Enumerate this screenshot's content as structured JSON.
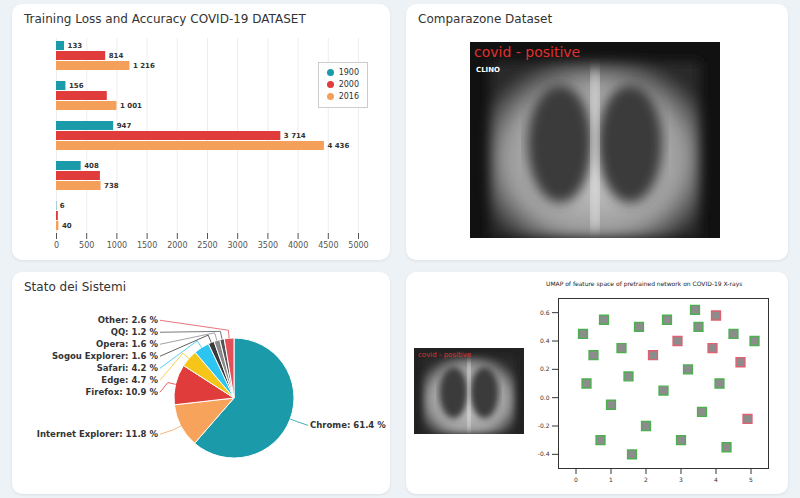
{
  "chart_data": [
    {
      "type": "bar",
      "title": "Training Loss and Accuracy COVID-19 DATASET",
      "orientation": "horizontal",
      "categories": [
        null,
        null,
        null,
        null,
        null
      ],
      "series": [
        {
          "name": "1900",
          "color": "#1b9aaa",
          "values": [
            133,
            156,
            947,
            408,
            6
          ],
          "value_labels": [
            "133",
            "156",
            "947",
            "408",
            "6"
          ]
        },
        {
          "name": "2000",
          "color": "#e03c3c",
          "values": [
            814,
            841,
            3714,
            727,
            31
          ],
          "value_labels": [
            "814",
            null,
            "3 714",
            null,
            null
          ]
        },
        {
          "name": "2016",
          "color": "#f5a05a",
          "values": [
            1216,
            1001,
            4436,
            738,
            40
          ],
          "value_labels": [
            "1 216",
            "1 001",
            "4 436",
            "738",
            "40"
          ]
        }
      ],
      "xlim": [
        0,
        5000
      ],
      "xticks": [
        0,
        500,
        1000,
        1500,
        2000,
        2500,
        3000,
        3500,
        4000,
        4500,
        5000
      ],
      "grid": true,
      "legend": "top-right",
      "data_labels": true
    },
    {
      "type": "pie",
      "title": "Stato dei Sistemi",
      "categories": [
        "Chrome",
        "Internet Explorer",
        "Firefox",
        "Edge",
        "Safari",
        "Sogou Explorer",
        "Opera",
        "QQ",
        "Other"
      ],
      "values": [
        61.4,
        11.8,
        10.9,
        4.7,
        4.2,
        1.6,
        1.6,
        1.2,
        2.6
      ],
      "value_labels": [
        "Chrome: 61.4 %",
        "Internet Explorer: 11.8 %",
        "Firefox: 10.9 %",
        "Edge: 4.7 %",
        "Safari: 4.2 %",
        "Sogou Explorer: 1.6 %",
        "Opera: 1.6 %",
        "QQ: 1.2 %",
        "Other: 2.6 %"
      ],
      "colors": [
        "#1b9aaa",
        "#f7a35c",
        "#e03c3c",
        "#f5c518",
        "#2cc4f0",
        "#3a3a3a",
        "#8a8a8a",
        "#555555",
        "#e2505a"
      ],
      "data_labels": true
    },
    {
      "type": "scatter",
      "title": "UMAP of feature space of pretrained network on COVID-19 X-rays",
      "x": [
        0.2,
        0.5,
        0.3,
        0.8,
        1.0,
        1.3,
        1.5,
        1.8,
        2.0,
        2.2,
        2.5,
        2.6,
        2.9,
        3.0,
        3.2,
        3.5,
        3.6,
        3.9,
        4.1,
        4.3,
        4.5,
        4.7,
        4.9,
        5.1,
        0.7,
        1.6,
        3.4,
        4.0
      ],
      "y": [
        0.45,
        0.3,
        0.1,
        0.55,
        -0.05,
        0.35,
        0.15,
        0.5,
        -0.2,
        0.3,
        0.05,
        0.55,
        0.4,
        -0.3,
        0.2,
        0.5,
        -0.1,
        0.35,
        0.1,
        -0.35,
        0.45,
        0.25,
        -0.15,
        0.4,
        -0.3,
        -0.4,
        0.62,
        0.58
      ],
      "colors": [
        "#4caf50",
        "#4caf50",
        "#4caf50",
        "#4caf50",
        "#4caf50",
        "#4caf50",
        "#4caf50",
        "#4caf50",
        "#4caf50",
        "#e06070",
        "#4caf50",
        "#4caf50",
        "#e06070",
        "#4caf50",
        "#4caf50",
        "#4caf50",
        "#4caf50",
        "#e06070",
        "#4caf50",
        "#4caf50",
        "#4caf50",
        "#e06070",
        "#e06070",
        "#4caf50",
        "#4caf50",
        "#4caf50",
        "#4caf50",
        "#e06070"
      ],
      "marker": "square",
      "xlim": [
        -0.5,
        5.5
      ],
      "xticks": [
        0,
        1,
        2,
        3,
        4,
        5
      ],
      "ylim": [
        -0.5,
        0.7
      ],
      "yticks": [
        -0.4,
        -0.2,
        {
          "value": 0,
          "label": "0.0"
        },
        0.2,
        0.4,
        0.6
      ]
    }
  ],
  "images": [
    {
      "title": "Comparazone Dataset",
      "labels": [
        "covid - positive",
        "CLINO"
      ]
    },
    {
      "labels": [
        "covid - positive"
      ]
    }
  ]
}
